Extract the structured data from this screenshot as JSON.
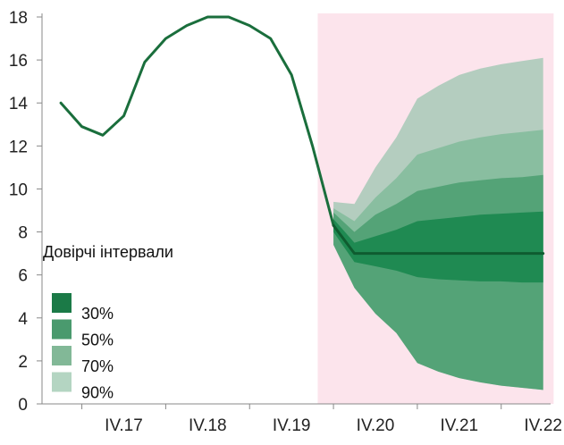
{
  "chart_data": {
    "type": "area",
    "ylim": [
      0,
      18
    ],
    "yticks": [
      0,
      2,
      4,
      6,
      8,
      10,
      12,
      14,
      16,
      18
    ],
    "xlim": [
      0,
      24
    ],
    "xticks": [
      {
        "x": 4,
        "label": "IV.17"
      },
      {
        "x": 8,
        "label": "IV.18"
      },
      {
        "x": 12,
        "label": "IV.19"
      },
      {
        "x": 16,
        "label": "IV.20"
      },
      {
        "x": 20,
        "label": "IV.21"
      },
      {
        "x": 24,
        "label": "IV.22"
      }
    ],
    "forecast_region": {
      "x_start": 13.25,
      "x_end": 24.5,
      "color": "#fce4ec"
    },
    "history": {
      "x": [
        1,
        2,
        3,
        4,
        5,
        6,
        7,
        8,
        9,
        10,
        11,
        12,
        13,
        14
      ],
      "y": [
        14.0,
        12.9,
        12.5,
        13.4,
        15.9,
        17.0,
        17.6,
        18.0,
        18.0,
        17.6,
        17.0,
        15.3,
        12.0,
        8.3
      ],
      "color": "#1a6e3c"
    },
    "forecast": {
      "x": [
        14,
        15,
        16,
        17,
        18,
        19,
        20,
        21,
        22,
        23,
        24
      ],
      "y": [
        8.3,
        7.0,
        7.0,
        7.0,
        7.0,
        7.0,
        7.0,
        7.0,
        7.0,
        7.0,
        7.0
      ],
      "color": "#0f5c30"
    },
    "bands": [
      {
        "name": "90%",
        "color": "#b4cdbf",
        "upper": [
          9.4,
          9.3,
          11.0,
          12.4,
          14.2,
          14.8,
          15.3,
          15.6,
          15.8,
          15.95,
          16.1
        ],
        "lower": [
          7.4,
          5.4,
          4.2,
          3.3,
          1.9,
          1.5,
          1.2,
          1.0,
          0.85,
          0.75,
          0.65
        ]
      },
      {
        "name": "70%",
        "color": "#89bea0",
        "upper": [
          9.1,
          8.5,
          9.6,
          10.5,
          11.6,
          11.9,
          12.2,
          12.4,
          12.55,
          12.65,
          12.75
        ],
        "lower": [
          7.7,
          5.9,
          5.0,
          4.6,
          3.8,
          3.6,
          3.4,
          3.25,
          3.15,
          3.05,
          2.95
        ]
      },
      {
        "name": "50%",
        "color": "#54a377",
        "upper": [
          8.9,
          8.0,
          8.8,
          9.3,
          9.9,
          10.1,
          10.3,
          10.4,
          10.5,
          10.55,
          10.65
        ]
      },
      {
        "name": "30%",
        "color": "#1f8a52",
        "upper": [
          8.6,
          7.5,
          7.8,
          8.1,
          8.5,
          8.6,
          8.7,
          8.8,
          8.85,
          8.9,
          8.95
        ],
        "lower": [
          8.0,
          6.6,
          6.4,
          6.2,
          5.9,
          5.8,
          5.75,
          5.7,
          5.7,
          5.65,
          5.65
        ]
      }
    ],
    "legend": {
      "title": "Довірчі інтервали",
      "placement": "left-middle",
      "items": [
        {
          "label": "30%",
          "color": "#1b7a47"
        },
        {
          "label": "50%",
          "color": "#4a9a6e"
        },
        {
          "label": "70%",
          "color": "#82b897"
        },
        {
          "label": "90%",
          "color": "#b4d5c2"
        }
      ]
    },
    "grid": false
  }
}
